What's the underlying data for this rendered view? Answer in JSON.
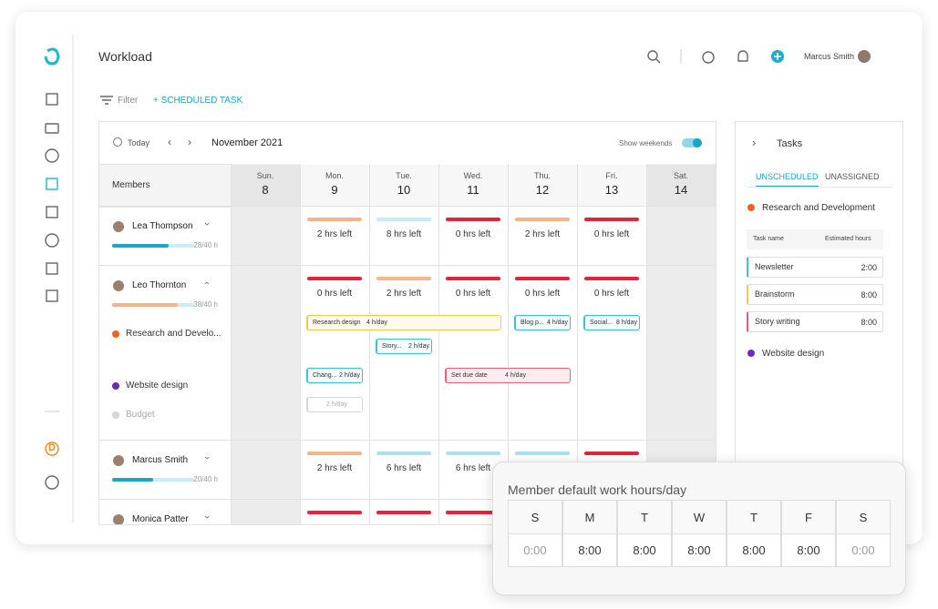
{
  "app": {
    "title": "Workload",
    "user": "Marcus Smith",
    "filter": "Filter",
    "scheduled_task": "+ SCHEDULED TASK"
  },
  "toolbar": {
    "today": "Today",
    "month": "November 2021",
    "show_weekends": "Show weekends"
  },
  "grid": {
    "members_header": "Members",
    "days": [
      {
        "name": "Sun.",
        "date": "8"
      },
      {
        "name": "Mon.",
        "date": "9"
      },
      {
        "name": "Tue.",
        "date": "10"
      },
      {
        "name": "Wed.",
        "date": "11"
      },
      {
        "name": "Thu.",
        "date": "12"
      },
      {
        "name": "Fri.",
        "date": "13"
      },
      {
        "name": "Sat.",
        "date": "14"
      }
    ]
  },
  "members": [
    {
      "name": "Lea Thompson",
      "hours": "28/40 h",
      "cells": [
        null,
        {
          "label": "2 hrs left",
          "color": "#f5b48a"
        },
        {
          "label": "8 hrs left",
          "color": "#c4ecf5"
        },
        {
          "label": "0 hrs left",
          "color": "#e3243b"
        },
        {
          "label": "2 hrs left",
          "color": "#f5b48a"
        },
        {
          "label": "0 hrs left",
          "color": "#e3243b"
        },
        null
      ]
    },
    {
      "name": "Leo Thornton",
      "hours": "38/40 h",
      "cells": [
        null,
        {
          "label": "0 hrs left",
          "color": "#e3243b"
        },
        {
          "label": "2 hrs left",
          "color": "#f5b48a"
        },
        {
          "label": "0 hrs left",
          "color": "#e3243b"
        },
        {
          "label": "0 hrs left",
          "color": "#e3243b"
        },
        {
          "label": "0 hrs left",
          "color": "#e3243b"
        },
        null
      ],
      "projects": [
        {
          "name": "Research and Develo...",
          "color": "#f0641e"
        },
        {
          "name": "Website design",
          "color": "#6a2bb8"
        },
        {
          "name": "Budget",
          "color": "#d6d6d6"
        }
      ],
      "tasks": [
        {
          "name": "Research design",
          "hours": "4 h/day",
          "color": "#f2c94c",
          "bg": "#fffaeb"
        },
        {
          "name": "Story...",
          "hours": "2 h/day",
          "color": "#3cc0dc",
          "bg": "#f3fbfd"
        },
        {
          "name": "Blog p...",
          "hours": "4 h/day",
          "color": "#3cc0dc",
          "bg": "#f3fbfd"
        },
        {
          "name": "Social...",
          "hours": "8 h/day",
          "color": "#3cc0dc",
          "bg": "#f3fbfd"
        },
        {
          "name": "Chang...",
          "hours": "2 h/day",
          "color": "#3cc0dc",
          "bg": "#f3fbfd"
        },
        {
          "name": "Set due date",
          "hours": "4 h/day",
          "color": "#e8607a",
          "bg": "#fdecef"
        },
        {
          "name": null,
          "hours": "2 h/day",
          "color": "#d6d6d6",
          "bg": "#ffffff"
        }
      ]
    },
    {
      "name": "Marcus Smith",
      "hours": "20/40 h",
      "cells": [
        null,
        {
          "label": "2 hrs left",
          "color": "#f5b48a"
        },
        {
          "label": "6 hrs left",
          "color": "#a9e2ef"
        },
        {
          "label": "6 hrs left",
          "color": "#a9e2ef"
        },
        {
          "label": null,
          "color": "#a9e2ef"
        },
        {
          "label": null,
          "color": "#e3243b"
        },
        null
      ]
    },
    {
      "name": "Monica Patter",
      "hours": null,
      "cells": [
        null,
        {
          "label": null,
          "color": "#e3243b"
        },
        {
          "label": null,
          "color": "#e3243b"
        },
        {
          "label": null,
          "color": "#e3243b"
        },
        null,
        null,
        null
      ]
    }
  ],
  "tasks_panel": {
    "title": "Tasks",
    "tabs": [
      "UNSCHEDULED",
      "UNASSIGNED"
    ],
    "groups": [
      {
        "name": "Research and Development",
        "color": "#f0641e"
      },
      {
        "name": "Website design",
        "color": "#6a2bb8"
      }
    ],
    "columns": [
      "Task name",
      "Estimated hours"
    ],
    "items": [
      {
        "name": "Newsletter",
        "hours": "2:00",
        "color": "#3cc0dc"
      },
      {
        "name": "Brainstorm",
        "hours": "8:00",
        "color": "#f2c94c"
      },
      {
        "name": "Story writing",
        "hours": "8:00",
        "color": "#e8607a"
      }
    ]
  },
  "popup": {
    "title": "Member default work hours/day",
    "days": [
      "S",
      "M",
      "T",
      "W",
      "T",
      "F",
      "S"
    ],
    "hours": [
      "0:00",
      "8:00",
      "8:00",
      "8:00",
      "8:00",
      "8:00",
      "0:00"
    ]
  }
}
